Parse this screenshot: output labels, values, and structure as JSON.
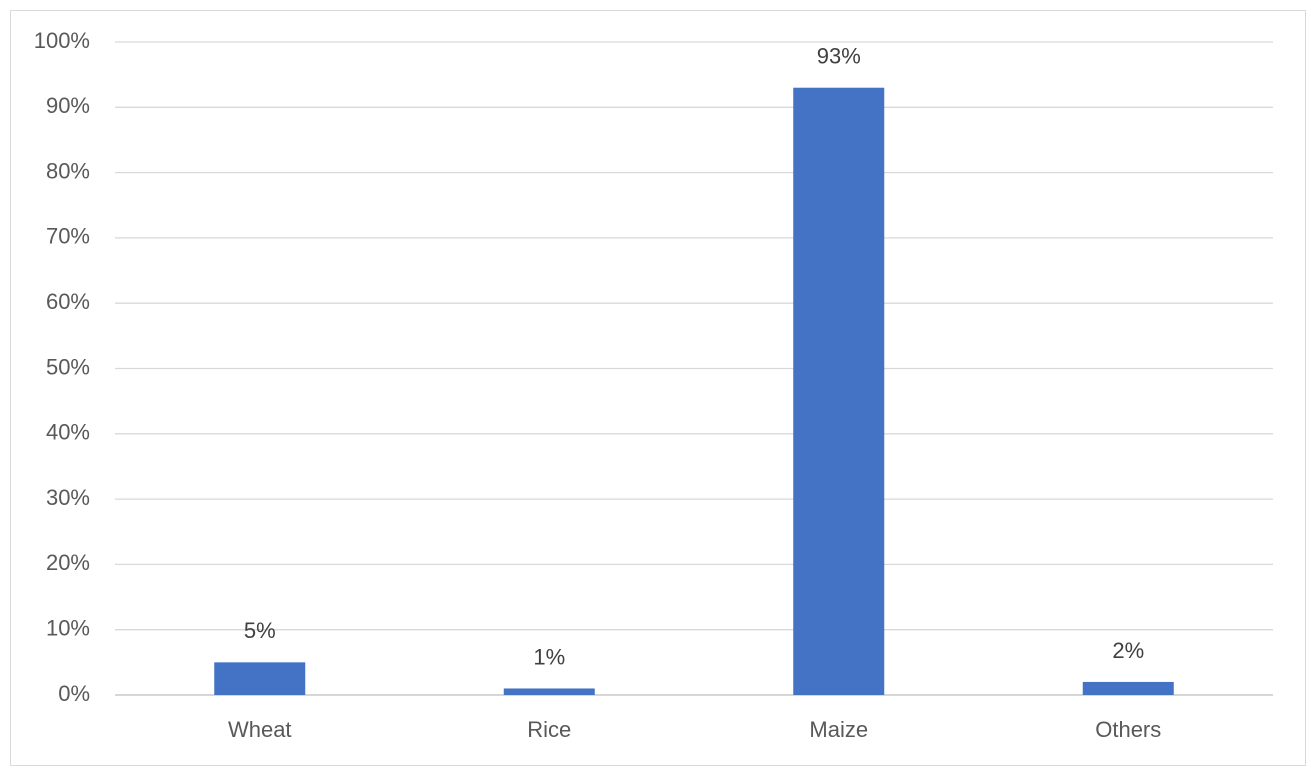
{
  "chart_data": {
    "type": "bar",
    "categories": [
      "Wheat",
      "Rice",
      "Maize",
      "Others"
    ],
    "values": [
      5,
      1,
      93,
      2
    ],
    "value_labels": [
      "5%",
      "1%",
      "93%",
      "2%"
    ],
    "color": "#4472c4",
    "ylim": [
      0,
      100
    ],
    "yticks": [
      {
        "value": 0,
        "label": "0%"
      },
      {
        "value": 10,
        "label": "10%"
      },
      {
        "value": 20,
        "label": "20%"
      },
      {
        "value": 30,
        "label": "30%"
      },
      {
        "value": 40,
        "label": "40%"
      },
      {
        "value": 50,
        "label": "50%"
      },
      {
        "value": 60,
        "label": "60%"
      },
      {
        "value": 70,
        "label": "70%"
      },
      {
        "value": 80,
        "label": "80%"
      },
      {
        "value": 90,
        "label": "90%"
      },
      {
        "value": 100,
        "label": "100%"
      }
    ],
    "grid": true
  }
}
